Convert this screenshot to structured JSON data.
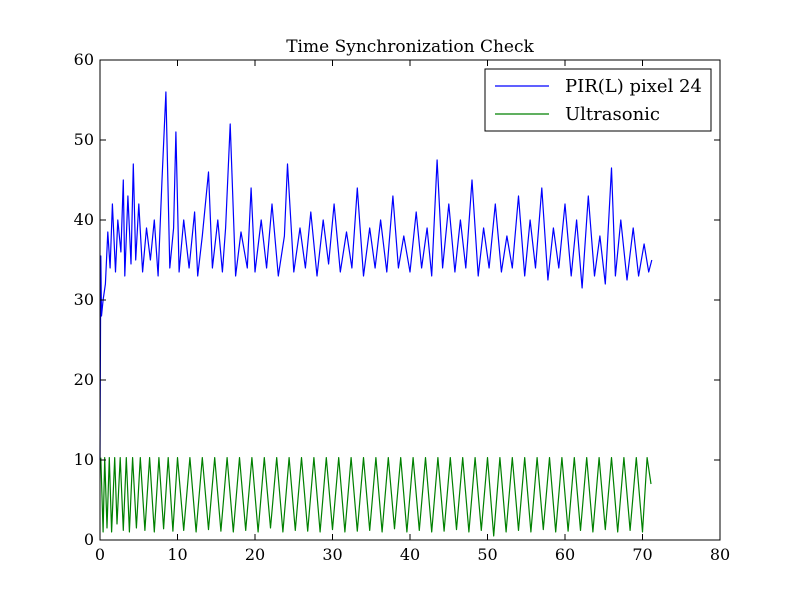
{
  "chart_data": {
    "type": "line",
    "title": "Time Synchronization Check",
    "xlabel": "",
    "ylabel": "",
    "xlim": [
      0,
      80
    ],
    "ylim": [
      0,
      60
    ],
    "xticks": [
      0,
      10,
      20,
      30,
      40,
      50,
      60,
      70,
      80
    ],
    "yticks": [
      0,
      10,
      20,
      30,
      40,
      50,
      60
    ],
    "xtick_labels": [
      "0",
      "10",
      "20",
      "30",
      "40",
      "50",
      "60",
      "70",
      "80"
    ],
    "ytick_labels": [
      "0",
      "10",
      "20",
      "30",
      "40",
      "50",
      "60"
    ],
    "grid": false,
    "legend_position": "top-right",
    "series": [
      {
        "name": "PIR(L) pixel 24",
        "color": "#0000ff",
        "x": [
          0.0,
          0.1,
          0.2,
          0.4,
          0.7,
          1.0,
          1.3,
          1.6,
          2.0,
          2.3,
          2.7,
          3.0,
          3.2,
          3.6,
          4.0,
          4.3,
          4.6,
          5.0,
          5.5,
          6.0,
          6.5,
          7.0,
          7.5,
          8.0,
          8.5,
          9.0,
          9.5,
          9.8,
          10.2,
          10.8,
          11.5,
          12.2,
          12.6,
          13.2,
          14.0,
          14.5,
          15.2,
          15.8,
          16.2,
          16.8,
          17.5,
          18.2,
          19.0,
          19.5,
          20.0,
          20.8,
          21.5,
          22.2,
          23.0,
          23.8,
          24.2,
          25.0,
          25.8,
          26.5,
          27.2,
          28.0,
          28.8,
          29.5,
          30.2,
          31.0,
          31.8,
          32.5,
          33.2,
          34.0,
          34.8,
          35.5,
          36.2,
          37.0,
          37.8,
          38.5,
          39.2,
          40.0,
          40.8,
          41.5,
          42.2,
          42.8,
          43.5,
          44.2,
          45.0,
          45.8,
          46.5,
          47.2,
          48.0,
          48.8,
          49.5,
          50.2,
          51.0,
          51.8,
          52.5,
          53.2,
          54.0,
          54.8,
          55.5,
          56.2,
          57.0,
          57.8,
          58.5,
          59.2,
          60.0,
          60.8,
          61.5,
          62.2,
          63.0,
          63.8,
          64.5,
          65.2,
          66.0,
          66.5,
          67.2,
          68.0,
          68.8,
          69.5,
          70.2,
          70.8,
          71.2
        ],
        "y": [
          10.0,
          35.5,
          28.0,
          30.0,
          32.0,
          38.5,
          34.0,
          42.0,
          33.5,
          40.0,
          36.0,
          45.0,
          33.0,
          43.0,
          34.5,
          47.0,
          35.0,
          42.0,
          33.5,
          39.0,
          35.0,
          40.0,
          33.0,
          45.0,
          56.0,
          34.0,
          39.0,
          51.0,
          33.5,
          40.0,
          34.0,
          41.0,
          33.0,
          38.0,
          46.0,
          34.0,
          40.0,
          33.5,
          39.0,
          52.0,
          33.0,
          38.5,
          34.0,
          44.0,
          33.5,
          40.0,
          34.0,
          42.0,
          33.0,
          38.0,
          47.0,
          33.5,
          39.0,
          34.0,
          41.0,
          33.0,
          40.0,
          34.5,
          42.0,
          33.5,
          38.5,
          34.0,
          44.0,
          33.0,
          39.0,
          34.0,
          40.0,
          33.5,
          43.0,
          34.0,
          38.0,
          33.5,
          41.0,
          34.0,
          39.0,
          33.0,
          47.5,
          34.0,
          42.0,
          33.5,
          40.0,
          34.0,
          45.0,
          33.0,
          39.0,
          34.0,
          42.0,
          33.5,
          38.0,
          34.0,
          43.0,
          33.0,
          40.0,
          34.0,
          44.0,
          32.5,
          39.0,
          34.0,
          42.0,
          33.0,
          40.0,
          31.5,
          43.0,
          33.0,
          38.0,
          32.0,
          46.5,
          33.0,
          40.0,
          32.5,
          39.0,
          33.0,
          37.0,
          33.5,
          35.0
        ]
      },
      {
        "name": "Ultrasonic",
        "color": "#008000",
        "x": [
          0.1,
          0.4,
          0.6,
          0.9,
          1.2,
          1.5,
          1.9,
          2.2,
          2.6,
          3.0,
          3.4,
          3.8,
          4.2,
          4.7,
          5.2,
          5.8,
          6.4,
          7.0,
          7.6,
          8.2,
          8.8,
          9.4,
          10.0,
          10.8,
          11.6,
          12.4,
          13.2,
          14.0,
          14.8,
          15.6,
          16.4,
          17.2,
          18.0,
          18.8,
          19.6,
          20.4,
          21.2,
          22.0,
          22.8,
          23.6,
          24.4,
          25.2,
          26.0,
          26.8,
          27.6,
          28.4,
          29.2,
          30.0,
          30.8,
          31.6,
          32.4,
          33.2,
          34.0,
          34.8,
          35.6,
          36.4,
          37.2,
          38.0,
          38.8,
          39.6,
          40.4,
          41.2,
          42.0,
          42.8,
          43.6,
          44.4,
          45.2,
          46.0,
          46.8,
          47.6,
          48.4,
          49.2,
          50.0,
          50.8,
          51.6,
          52.4,
          53.2,
          54.0,
          54.8,
          55.6,
          56.4,
          57.2,
          58.0,
          58.8,
          59.6,
          60.4,
          61.2,
          62.0,
          62.8,
          63.6,
          64.4,
          65.2,
          66.0,
          66.8,
          67.6,
          68.4,
          69.2,
          70.0,
          70.6,
          71.1
        ],
        "y": [
          10.3,
          1.0,
          10.3,
          1.5,
          10.3,
          1.0,
          10.3,
          2.0,
          10.3,
          1.2,
          10.3,
          1.0,
          10.3,
          1.5,
          10.3,
          1.2,
          10.3,
          1.0,
          10.3,
          1.4,
          10.3,
          1.1,
          10.3,
          1.2,
          10.3,
          1.0,
          10.3,
          1.3,
          10.3,
          1.1,
          10.3,
          1.0,
          10.3,
          1.2,
          10.3,
          1.0,
          10.3,
          1.5,
          10.3,
          1.0,
          10.3,
          1.2,
          10.3,
          1.1,
          10.3,
          1.0,
          10.3,
          1.3,
          10.3,
          1.0,
          10.3,
          1.1,
          10.3,
          1.2,
          10.3,
          1.0,
          10.3,
          1.4,
          10.3,
          1.0,
          10.3,
          1.2,
          10.3,
          1.0,
          10.3,
          1.1,
          10.3,
          1.3,
          10.3,
          1.0,
          10.3,
          1.2,
          10.3,
          0.5,
          10.3,
          1.0,
          10.3,
          1.2,
          10.3,
          1.0,
          10.3,
          1.3,
          10.3,
          1.0,
          10.3,
          1.1,
          10.3,
          1.2,
          10.3,
          1.0,
          10.3,
          1.3,
          10.3,
          1.0,
          10.3,
          1.2,
          10.3,
          1.0,
          10.3,
          7.0
        ]
      }
    ]
  }
}
